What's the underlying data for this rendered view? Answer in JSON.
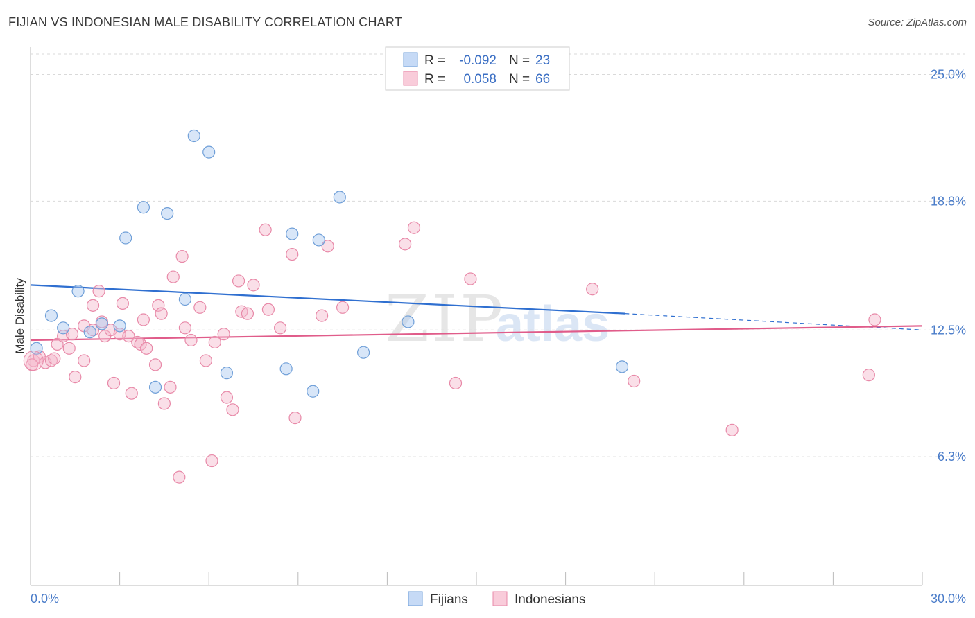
{
  "title": "FIJIAN VS INDONESIAN MALE DISABILITY CORRELATION CHART",
  "source": "Source: ZipAtlas.com",
  "watermark": {
    "zip": "ZIP",
    "atlas": "atlas"
  },
  "legend": {
    "rows": [
      {
        "r_label": "R =",
        "r_value": "-0.092",
        "n_label": "N =",
        "n_value": "23",
        "color": "#a9c8f0"
      },
      {
        "r_label": "R =",
        "r_value": "0.058",
        "n_label": "N =",
        "n_value": "66",
        "color": "#f5b8cc"
      }
    ]
  },
  "chart_data": {
    "type": "scatter",
    "title": "FIJIAN VS INDONESIAN MALE DISABILITY CORRELATION CHART",
    "xlabel": "",
    "ylabel": "Male Disability",
    "xlim": [
      0,
      30
    ],
    "ylim": [
      0,
      26
    ],
    "x_tick_labels": [
      "0.0%",
      "30.0%"
    ],
    "y_ticks": [
      6.3,
      12.5,
      18.8,
      25.0
    ],
    "y_tick_labels": [
      "6.3%",
      "12.5%",
      "18.8%",
      "25.0%"
    ],
    "grid": true,
    "legend_position": "bottom-center",
    "series": [
      {
        "name": "Fijians",
        "color": "#a9c8f0",
        "stroke": "#6f9fd8",
        "trend_color": "#2f6fd0",
        "trend": {
          "x0": 0,
          "y0": 14.7,
          "x1": 20,
          "y1": 13.3,
          "dash_to_x": 30,
          "dash_to_y": 12.5
        },
        "points": [
          [
            0.2,
            11.6
          ],
          [
            0.7,
            13.2
          ],
          [
            1.1,
            12.6
          ],
          [
            1.6,
            14.4
          ],
          [
            2.0,
            12.4
          ],
          [
            2.4,
            12.8
          ],
          [
            3.0,
            12.7
          ],
          [
            3.2,
            17.0
          ],
          [
            3.8,
            18.5
          ],
          [
            4.2,
            9.7
          ],
          [
            4.6,
            18.2
          ],
          [
            5.2,
            14.0
          ],
          [
            5.5,
            22.0
          ],
          [
            6.0,
            21.2
          ],
          [
            6.6,
            10.4
          ],
          [
            8.6,
            10.6
          ],
          [
            8.8,
            17.2
          ],
          [
            9.5,
            9.5
          ],
          [
            9.7,
            16.9
          ],
          [
            10.4,
            19.0
          ],
          [
            11.2,
            11.4
          ],
          [
            12.7,
            12.9
          ],
          [
            19.9,
            10.7
          ]
        ]
      },
      {
        "name": "Indonesians",
        "color": "#f5b8cc",
        "stroke": "#e889a8",
        "trend_color": "#e05c8a",
        "trend": {
          "x0": 0,
          "y0": 12.0,
          "x1": 30,
          "y1": 12.7
        },
        "points": [
          [
            0.1,
            11.0
          ],
          [
            0.3,
            11.2
          ],
          [
            0.5,
            10.9
          ],
          [
            0.7,
            11.0
          ],
          [
            0.8,
            11.1
          ],
          [
            0.9,
            11.8
          ],
          [
            1.1,
            12.2
          ],
          [
            1.3,
            11.6
          ],
          [
            1.4,
            12.3
          ],
          [
            1.5,
            10.2
          ],
          [
            1.8,
            12.7
          ],
          [
            1.8,
            11.0
          ],
          [
            2.1,
            12.5
          ],
          [
            2.1,
            13.7
          ],
          [
            2.3,
            14.4
          ],
          [
            2.4,
            12.9
          ],
          [
            2.5,
            12.2
          ],
          [
            2.7,
            12.5
          ],
          [
            2.8,
            9.9
          ],
          [
            3.0,
            12.3
          ],
          [
            3.1,
            13.8
          ],
          [
            3.3,
            12.2
          ],
          [
            3.4,
            9.4
          ],
          [
            3.6,
            11.9
          ],
          [
            3.7,
            11.8
          ],
          [
            3.8,
            13.0
          ],
          [
            3.9,
            11.6
          ],
          [
            4.2,
            10.8
          ],
          [
            4.3,
            13.7
          ],
          [
            4.4,
            13.3
          ],
          [
            4.5,
            8.9
          ],
          [
            4.7,
            9.7
          ],
          [
            4.8,
            15.1
          ],
          [
            5.0,
            5.3
          ],
          [
            5.1,
            16.1
          ],
          [
            5.2,
            12.6
          ],
          [
            5.4,
            12.0
          ],
          [
            5.7,
            13.6
          ],
          [
            5.9,
            11.0
          ],
          [
            6.1,
            6.1
          ],
          [
            6.2,
            11.9
          ],
          [
            6.5,
            12.3
          ],
          [
            6.6,
            9.2
          ],
          [
            6.8,
            8.6
          ],
          [
            7.0,
            14.9
          ],
          [
            7.1,
            13.4
          ],
          [
            7.3,
            13.3
          ],
          [
            7.5,
            14.7
          ],
          [
            7.9,
            17.4
          ],
          [
            8.0,
            13.5
          ],
          [
            8.4,
            12.6
          ],
          [
            8.8,
            16.2
          ],
          [
            8.9,
            8.2
          ],
          [
            9.8,
            13.2
          ],
          [
            10.0,
            16.6
          ],
          [
            10.5,
            13.6
          ],
          [
            12.6,
            16.7
          ],
          [
            12.9,
            17.5
          ],
          [
            14.3,
            9.9
          ],
          [
            14.8,
            15.0
          ],
          [
            18.9,
            14.5
          ],
          [
            20.3,
            10.0
          ],
          [
            23.6,
            7.6
          ],
          [
            28.2,
            10.3
          ],
          [
            28.4,
            13.0
          ],
          [
            0.05,
            10.8
          ]
        ]
      }
    ]
  }
}
